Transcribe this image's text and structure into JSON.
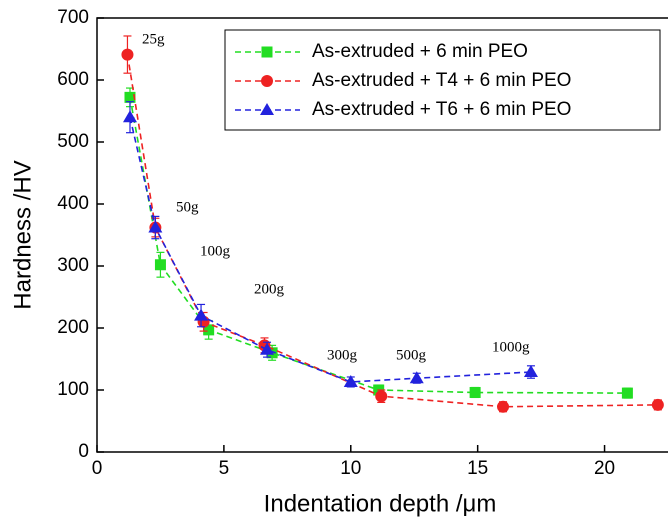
{
  "chart_data": {
    "type": "line",
    "x_label": "Indentation depth /μm",
    "y_label": "Hardness /HV",
    "xlim": [
      0,
      22.5
    ],
    "xticks": [
      0,
      5,
      10,
      15,
      20
    ],
    "ylim": [
      0,
      700
    ],
    "yticks": [
      0,
      100,
      200,
      300,
      400,
      500,
      600,
      700
    ],
    "legend": "upper right",
    "annotations": [
      "25g",
      "50g",
      "100g",
      "200g",
      "300g",
      "500g",
      "1000g"
    ],
    "series": [
      {
        "name": "As-extruded + 6 min PEO",
        "color": "#22dd22",
        "marker": "square",
        "x": [
          1.3,
          2.5,
          4.4,
          6.9,
          11.1,
          14.9,
          20.9
        ],
        "values": [
          572,
          302,
          197,
          160,
          100,
          96,
          95
        ],
        "errors": [
          15,
          20,
          15,
          12,
          8,
          8,
          8
        ]
      },
      {
        "name": "As-extruded + T4 + 6 min PEO",
        "color": "#ee2222",
        "marker": "circle",
        "x": [
          1.2,
          2.3,
          4.2,
          6.6,
          11.2,
          16,
          22.1
        ],
        "values": [
          641,
          362,
          210,
          172,
          90,
          73,
          76
        ],
        "errors": [
          30,
          15,
          15,
          12,
          10,
          8,
          8
        ]
      },
      {
        "name": "As-extruded + T6 + 6 min PEO",
        "color": "#2222dd",
        "marker": "triangle",
        "x": [
          1.3,
          2.3,
          4.1,
          6.7,
          10,
          12.6,
          17.1
        ],
        "values": [
          540,
          362,
          220,
          165,
          113,
          119,
          129
        ],
        "errors": [
          25,
          18,
          18,
          12,
          8,
          8,
          10
        ]
      }
    ]
  }
}
